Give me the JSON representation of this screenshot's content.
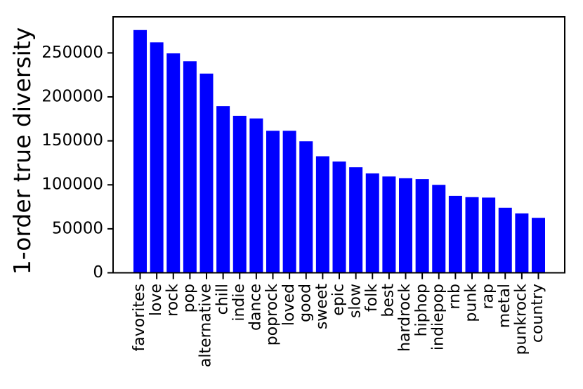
{
  "figure": {
    "background": "#ffffff"
  },
  "chart_data": {
    "type": "bar",
    "title": "",
    "xlabel": "",
    "ylabel": "1-order true diversity",
    "categories": [
      "favorites",
      "love",
      "rock",
      "pop",
      "alternative",
      "chill",
      "indie",
      "dance",
      "poprock",
      "loved",
      "good",
      "sweet",
      "epic",
      "slow",
      "folk",
      "best",
      "hardrock",
      "hiphop",
      "indiepop",
      "rnb",
      "punk",
      "rap",
      "metal",
      "punkrock",
      "country"
    ],
    "values": [
      276000,
      262000,
      249500,
      240500,
      226500,
      189500,
      178500,
      175500,
      161500,
      161500,
      149500,
      132500,
      126500,
      120000,
      113000,
      109500,
      107500,
      106500,
      100000,
      87500,
      86000,
      85500,
      74000,
      67500,
      62500
    ],
    "yticks": [
      0,
      50000,
      100000,
      150000,
      200000,
      250000
    ],
    "ylim": [
      0,
      291000
    ],
    "x_tick_rotation": 90,
    "grid": false,
    "legend": null,
    "bar_color": "#0000ff",
    "axis_color": "#000000",
    "text_color": "#000000"
  }
}
